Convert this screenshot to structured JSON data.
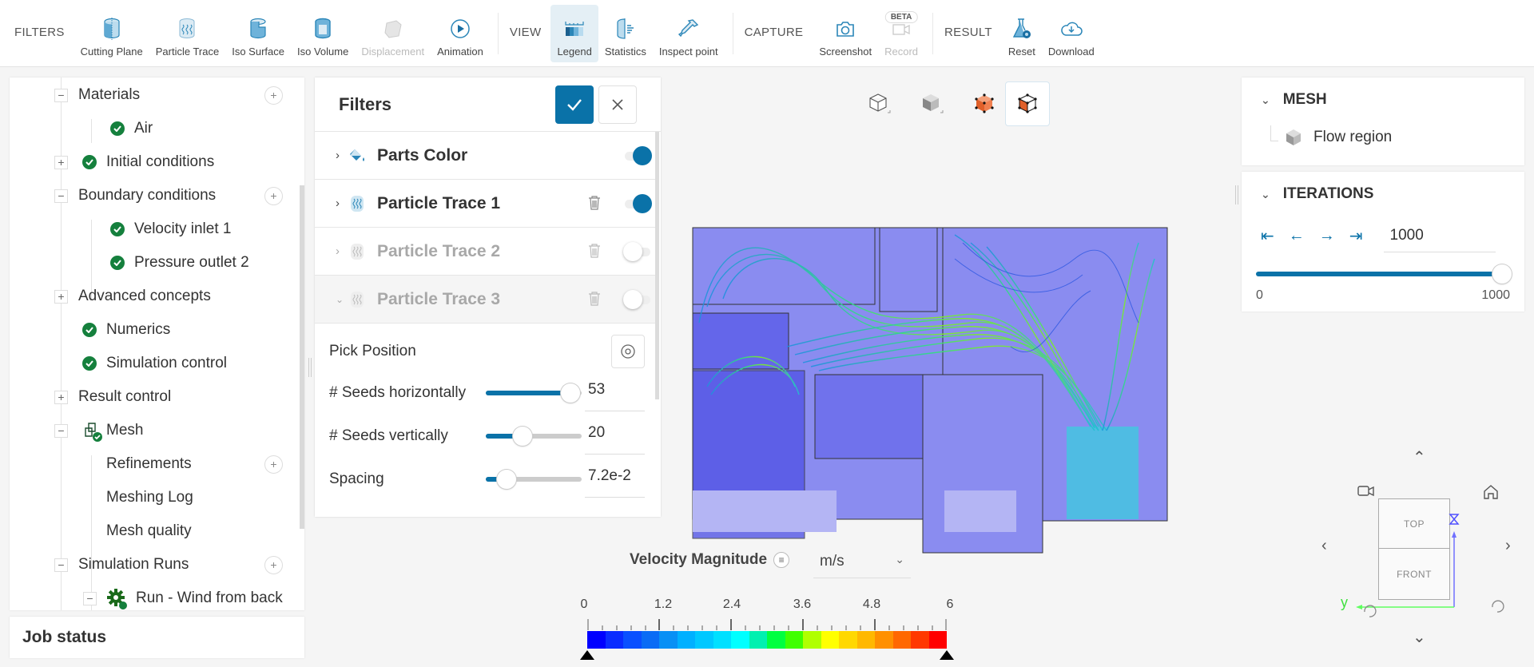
{
  "toolbar": {
    "filters_label": "FILTERS",
    "filters": [
      {
        "label": "Cutting Plane",
        "icon": "cutting-plane-icon",
        "enabled": true
      },
      {
        "label": "Particle Trace",
        "icon": "particle-trace-icon",
        "enabled": true
      },
      {
        "label": "Iso Surface",
        "icon": "iso-surface-icon",
        "enabled": true
      },
      {
        "label": "Iso Volume",
        "icon": "iso-volume-icon",
        "enabled": true
      },
      {
        "label": "Displacement",
        "icon": "displacement-icon",
        "enabled": false
      },
      {
        "label": "Animation",
        "icon": "play-icon",
        "enabled": true
      }
    ],
    "view_label": "VIEW",
    "view": [
      {
        "label": "Legend",
        "icon": "legend-icon",
        "active": true
      },
      {
        "label": "Statistics",
        "icon": "statistics-icon"
      },
      {
        "label": "Inspect point",
        "icon": "pipette-icon"
      }
    ],
    "capture_label": "CAPTURE",
    "capture": [
      {
        "label": "Screenshot",
        "icon": "camera-icon"
      },
      {
        "label": "Record",
        "icon": "video-camera-icon",
        "enabled": false,
        "badge": "BETA"
      }
    ],
    "result_label": "RESULT",
    "result": [
      {
        "label": "Reset",
        "icon": "reset-flask-icon"
      },
      {
        "label": "Download",
        "icon": "cloud-download-icon"
      }
    ]
  },
  "tree": {
    "items": [
      {
        "label": "Materials",
        "expander": "-",
        "add": true
      },
      {
        "label": "Air",
        "status": "ok"
      },
      {
        "label": "Initial conditions",
        "expander": "+",
        "status": "ok"
      },
      {
        "label": "Boundary conditions",
        "expander": "-",
        "add": true
      },
      {
        "label": "Velocity inlet 1",
        "status": "ok"
      },
      {
        "label": "Pressure outlet 2",
        "status": "ok"
      },
      {
        "label": "Advanced concepts",
        "expander": "+"
      },
      {
        "label": "Numerics",
        "status": "ok"
      },
      {
        "label": "Simulation control",
        "status": "ok"
      },
      {
        "label": "Result control",
        "expander": "+"
      },
      {
        "label": "Mesh",
        "expander": "-",
        "icon": "mesh-icon"
      },
      {
        "label": "Refinements",
        "add": true
      },
      {
        "label": "Meshing Log"
      },
      {
        "label": "Mesh quality"
      },
      {
        "label": "Simulation Runs",
        "expander": "-",
        "add": true
      },
      {
        "label": "Run - Wind from back",
        "expander": "-",
        "icon": "gear-icon"
      }
    ]
  },
  "job_status": {
    "title": "Job status"
  },
  "filters_panel": {
    "title": "Filters",
    "rows": [
      {
        "label": "Parts Color",
        "enabled": true,
        "expanded": false,
        "deletable": false
      },
      {
        "label": "Particle Trace 1",
        "enabled": true,
        "expanded": false,
        "deletable": true
      },
      {
        "label": "Particle Trace 2",
        "enabled": false,
        "expanded": false,
        "deletable": true
      },
      {
        "label": "Particle Trace 3",
        "enabled": false,
        "expanded": true,
        "deletable": true
      }
    ],
    "pick_position_label": "Pick Position",
    "sliders": [
      {
        "label": "# Seeds horizontally",
        "value": "53",
        "percent": 74
      },
      {
        "label": "# Seeds vertically",
        "value": "20",
        "percent": 33
      },
      {
        "label": "Spacing",
        "value": "7.2e-2",
        "percent": 18
      }
    ]
  },
  "legend": {
    "title": "Velocity Magnitude",
    "unit": "m/s",
    "ticks": [
      "0",
      "1.2",
      "2.4",
      "3.6",
      "4.8",
      "6"
    ],
    "colors": [
      "#0000ff",
      "#0a2cff",
      "#0a50ff",
      "#0a6cf5",
      "#0890f5",
      "#00b0ff",
      "#00c8ff",
      "#00e0ff",
      "#00ffff",
      "#00f0b0",
      "#00ff40",
      "#40ff00",
      "#b0ff00",
      "#ffff00",
      "#ffd800",
      "#ffb800",
      "#ff9000",
      "#ff6800",
      "#ff3800",
      "#ff0000"
    ]
  },
  "mesh_panel": {
    "title": "MESH",
    "items": [
      "Flow region"
    ]
  },
  "iterations_panel": {
    "title": "ITERATIONS",
    "value": "1000",
    "min": "0",
    "max": "1000"
  },
  "navcube": {
    "top": "TOP",
    "front": "FRONT",
    "axis_y": "y",
    "axis_z": "z"
  },
  "colors": {
    "accent": "#0a72a8",
    "ok_green": "#15803d",
    "mesh_fill": "#8a8cf0"
  }
}
